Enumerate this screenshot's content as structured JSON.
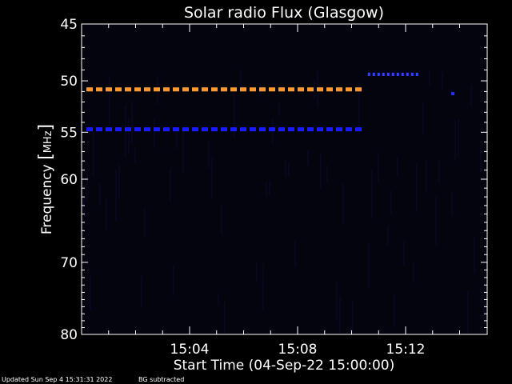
{
  "chart_data": {
    "type": "heatmap",
    "title": "Solar radio Flux (Glasgow)",
    "ylabel_main": "Frequency ",
    "ylabel_bracket_open": "[",
    "ylabel_unit": "MHz",
    "ylabel_bracket_close": "]",
    "xlabel": "Start Time (04-Sep-22 15:00:00)",
    "y_axis": {
      "range": [
        45,
        80
      ],
      "inverted": true,
      "ticks": [
        {
          "value": 45,
          "label": "45"
        },
        {
          "value": 50,
          "label": "50"
        },
        {
          "value": 55,
          "label": "55"
        },
        {
          "value": 60,
          "label": "60"
        },
        {
          "value": 70,
          "label": "70"
        },
        {
          "value": 80,
          "label": "80"
        }
      ]
    },
    "x_axis": {
      "range_minutes": [
        0,
        15
      ],
      "ticks": [
        {
          "value": 4,
          "label": "15:04"
        },
        {
          "value": 8,
          "label": "15:08"
        },
        {
          "value": 12,
          "label": "15:12"
        }
      ],
      "minor_tick_step_minutes": 1
    },
    "features": [
      {
        "type": "dashed-band",
        "frequency_mhz": 50.8,
        "x_start_min": 0.0,
        "x_end_min": 10.5,
        "color": "#ff9933"
      },
      {
        "type": "dashed-band",
        "frequency_mhz": 54.7,
        "x_start_min": 0.0,
        "x_end_min": 10.5,
        "color": "#1a1aff"
      },
      {
        "type": "dotted-band",
        "frequency_mhz": 49.4,
        "x_start_min": 10.6,
        "x_end_min": 12.5,
        "color": "#3344ff"
      },
      {
        "type": "spot",
        "frequency_mhz": 51.2,
        "x_min": 13.75,
        "color": "#1a33ff"
      }
    ],
    "background_color": "#04040f",
    "grid": false,
    "legend": "none"
  },
  "footer": {
    "updated": "Updated Sun Sep  4 15:31:31 2022",
    "note": "BG subtracted"
  }
}
